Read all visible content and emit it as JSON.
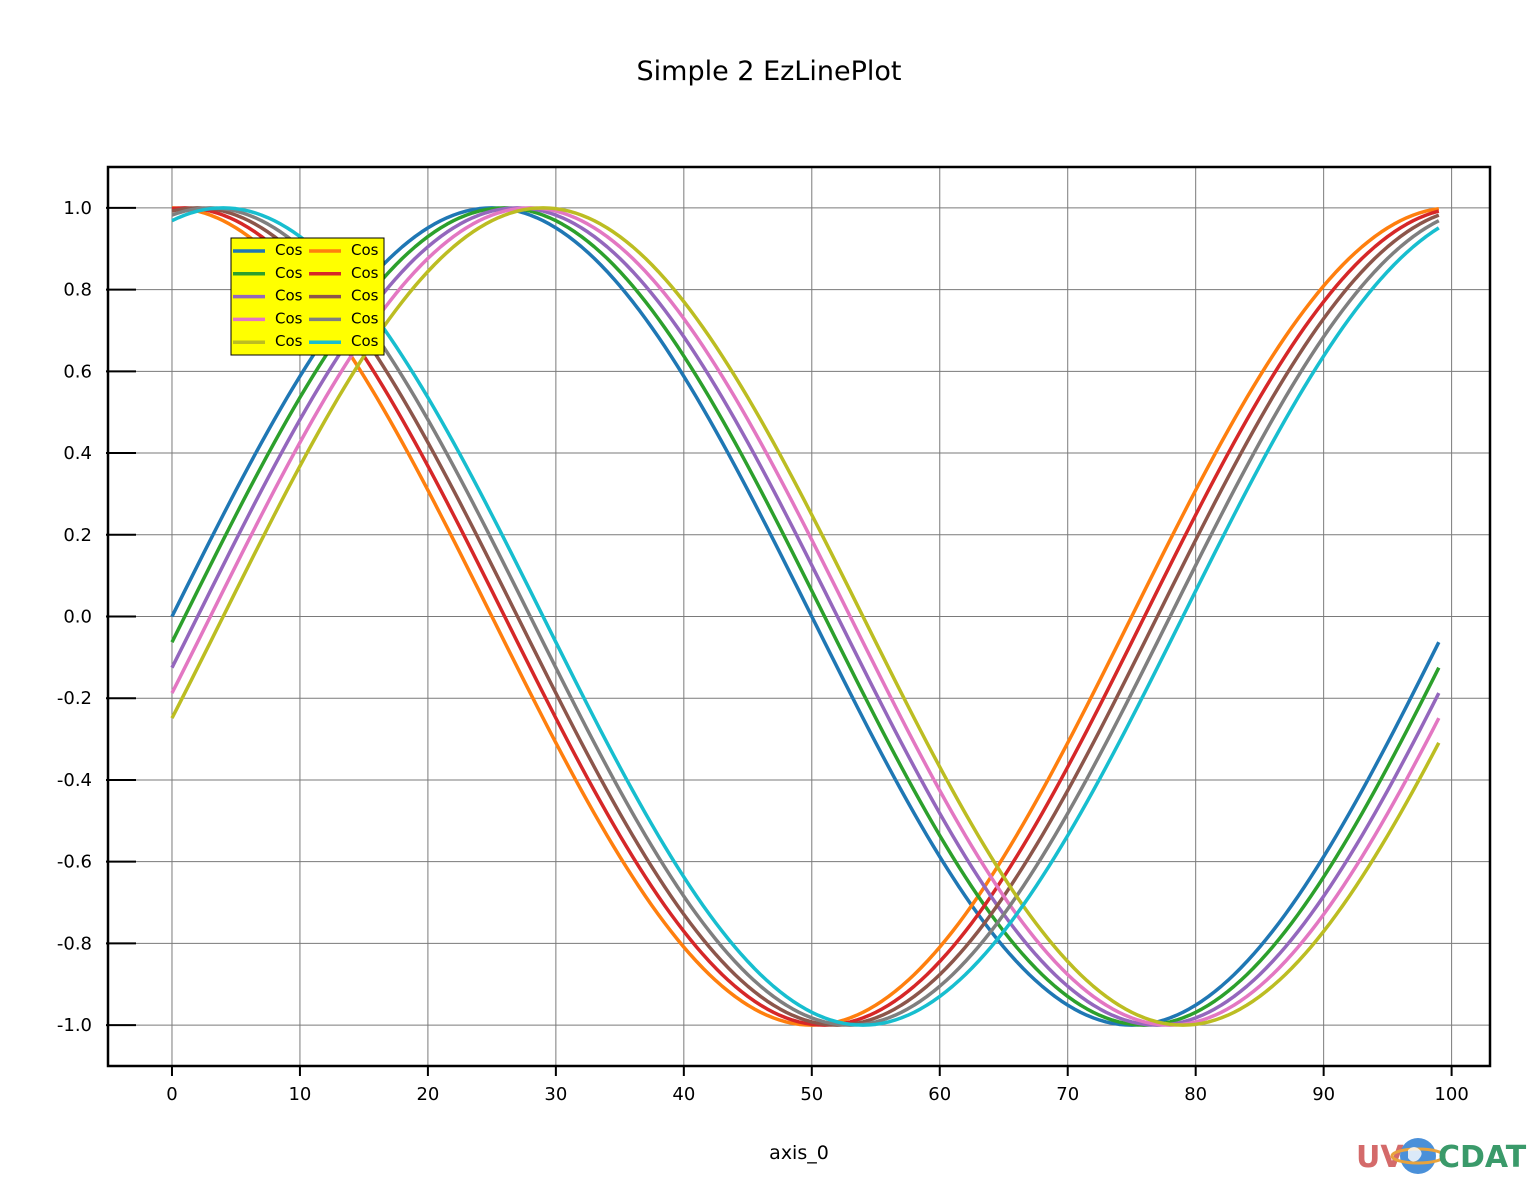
{
  "chart_data": {
    "type": "line",
    "title": "Simple 2 EzLinePlot",
    "xlabel": "axis_0",
    "ylabel": "",
    "xlim": [
      -5,
      103
    ],
    "ylim": [
      -1.1,
      1.1
    ],
    "x_ticks": [
      0,
      10,
      20,
      30,
      40,
      50,
      60,
      70,
      80,
      90,
      100
    ],
    "y_ticks": [
      1.0,
      0.8,
      0.6,
      0.4,
      0.2,
      0.0,
      -0.2,
      -0.4,
      -0.6,
      -0.8,
      -1.0
    ],
    "y_tick_labels": [
      "1.0",
      "0.8",
      "0.6",
      "0.4",
      "0.2",
      "0.0",
      "-0.2",
      "-0.4",
      "-0.6",
      "-0.8",
      "-1.0"
    ],
    "x_tick_labels": [
      "0",
      "10",
      "20",
      "30",
      "40",
      "50",
      "60",
      "70",
      "80",
      "90",
      "100"
    ],
    "grid": true,
    "legend_position": "top-left",
    "x_range": [
      0,
      99
    ],
    "series": [
      {
        "name": "Cos",
        "color": "#1f77b4",
        "formula": "sin(2*pi*x/100)",
        "start": 0.0,
        "end": -0.063
      },
      {
        "name": "Cos",
        "color": "#ff7f0e",
        "formula": "cos(2*pi*x/100)",
        "start": 1.0,
        "end": 0.998
      },
      {
        "name": "Cos",
        "color": "#2ca02c",
        "formula": "sin(2*pi*(x-2)/100)",
        "start": -0.125,
        "end": -0.187
      },
      {
        "name": "Cos",
        "color": "#d62728",
        "formula": "cos(2*pi*(x-3)/100)",
        "start": 0.982,
        "end": 0.969
      },
      {
        "name": "Cos",
        "color": "#9467bd",
        "formula": "sin(2*pi*(x-4)/100)",
        "start": -0.249,
        "end": -0.309
      },
      {
        "name": "Cos",
        "color": "#8c564b",
        "formula": "cos(2*pi*(x-5)/100)",
        "start": 0.951,
        "end": 0.93
      },
      {
        "name": "Cos",
        "color": "#e377c2",
        "formula": "sin(2*pi*(x-6)/100)",
        "start": -0.368,
        "end": -0.426
      },
      {
        "name": "Cos",
        "color": "#7f7f7f",
        "formula": "cos(2*pi*(x-7)/100)",
        "start": 0.904,
        "end": 0.876
      },
      {
        "name": "Cos",
        "color": "#bcbd22",
        "formula": "sin(2*pi*(x-8)/100)",
        "start": -0.482,
        "end": -0.536
      },
      {
        "name": "Cos",
        "color": "#17becf",
        "formula": "cos(2*pi*(x-9)/100)",
        "start": 0.844,
        "end": 0.809
      }
    ]
  },
  "logo": {
    "text_a": "UV",
    "text_b": "CDAT"
  }
}
